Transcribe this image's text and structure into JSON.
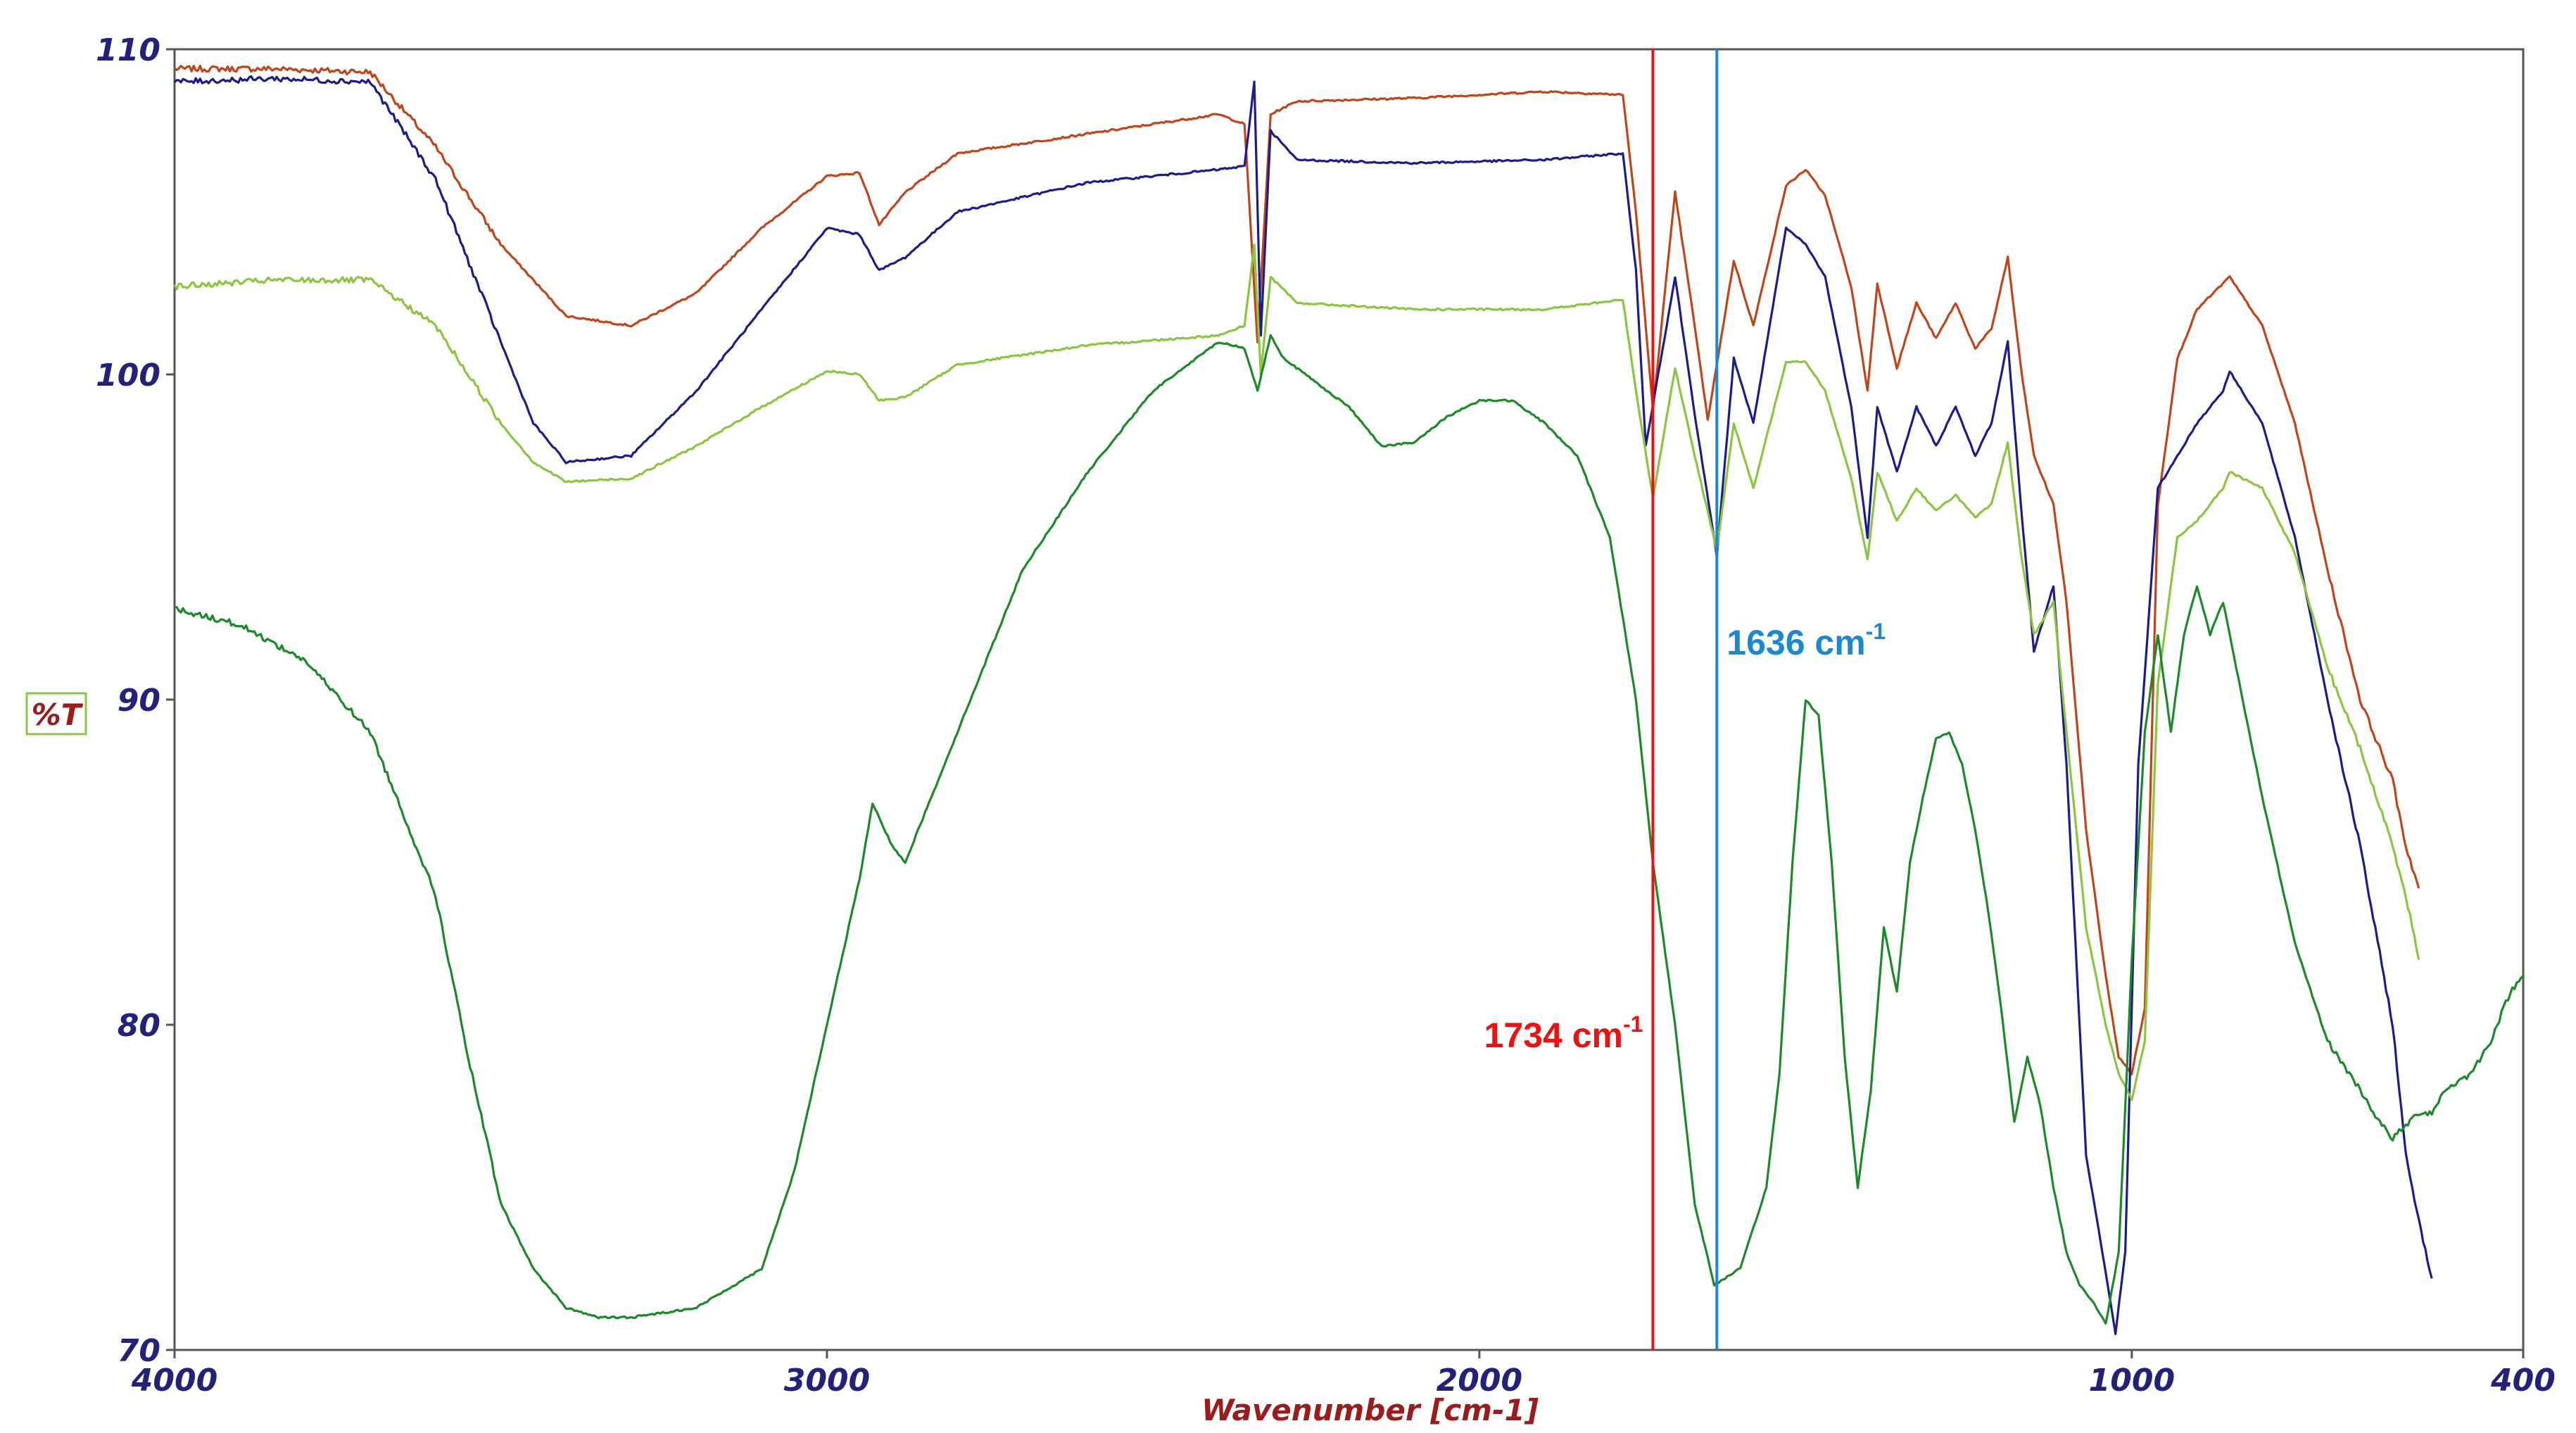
{
  "chart_data": {
    "type": "line",
    "xlabel": "Wavenumber [cm-1]",
    "ylabel": "%T",
    "xlim": [
      4000,
      400
    ],
    "ylim": [
      70,
      110
    ],
    "x_reversed": true,
    "grid": false,
    "legend": "none",
    "x_ticks": [
      4000,
      3000,
      2000,
      1000,
      400
    ],
    "x_tick_labels": [
      "4000",
      "3000",
      "2000",
      "1000",
      "400"
    ],
    "y_ticks": [
      110,
      100,
      90,
      80,
      70
    ],
    "y_tick_labels": [
      "110",
      "100",
      "90",
      "80",
      "70"
    ],
    "colors": {
      "axis_text": "#22227a",
      "axis_title": "#9a1c1c",
      "ylabel_border": "#8cc63f",
      "frame": "#555555"
    },
    "series": [
      {
        "color": "#c0461a",
        "points": [
          [
            4000,
            109.4
          ],
          [
            3850,
            109.4
          ],
          [
            3700,
            109.3
          ],
          [
            3600,
            107.0
          ],
          [
            3500,
            104.0
          ],
          [
            3400,
            101.8
          ],
          [
            3300,
            101.5
          ],
          [
            3200,
            102.5
          ],
          [
            3100,
            104.5
          ],
          [
            3000,
            106.1
          ],
          [
            2950,
            106.2
          ],
          [
            2920,
            104.6
          ],
          [
            2880,
            105.6
          ],
          [
            2800,
            106.8
          ],
          [
            2600,
            107.4
          ],
          [
            2400,
            108.0
          ],
          [
            2360,
            107.7
          ],
          [
            2340,
            101.0
          ],
          [
            2320,
            108.0
          ],
          [
            2280,
            108.4
          ],
          [
            2100,
            108.5
          ],
          [
            1900,
            108.7
          ],
          [
            1780,
            108.6
          ],
          [
            1760,
            105.0
          ],
          [
            1734,
            98.9
          ],
          [
            1700,
            105.6
          ],
          [
            1670,
            101.5
          ],
          [
            1650,
            98.6
          ],
          [
            1610,
            103.5
          ],
          [
            1580,
            101.5
          ],
          [
            1530,
            105.8
          ],
          [
            1500,
            106.3
          ],
          [
            1470,
            105.5
          ],
          [
            1430,
            102.7
          ],
          [
            1405,
            99.5
          ],
          [
            1390,
            102.8
          ],
          [
            1360,
            100.2
          ],
          [
            1330,
            102.2
          ],
          [
            1300,
            101.1
          ],
          [
            1270,
            102.2
          ],
          [
            1240,
            100.8
          ],
          [
            1215,
            101.4
          ],
          [
            1190,
            103.6
          ],
          [
            1170,
            100.2
          ],
          [
            1150,
            97.5
          ],
          [
            1120,
            96.0
          ],
          [
            1100,
            93.0
          ],
          [
            1070,
            86.0
          ],
          [
            1040,
            81.5
          ],
          [
            1020,
            79.0
          ],
          [
            1000,
            78.5
          ],
          [
            980,
            80.5
          ],
          [
            960,
            96.0
          ],
          [
            930,
            100.5
          ],
          [
            900,
            102.0
          ],
          [
            850,
            103.0
          ],
          [
            800,
            101.5
          ],
          [
            750,
            98.5
          ],
          [
            700,
            94.0
          ],
          [
            650,
            90.0
          ],
          [
            600,
            87.5
          ],
          [
            580,
            85.5
          ],
          [
            560,
            84.2
          ]
        ]
      },
      {
        "color": "#1c1c8c",
        "points": [
          [
            4000,
            109.0
          ],
          [
            3850,
            109.1
          ],
          [
            3700,
            109.0
          ],
          [
            3600,
            106.0
          ],
          [
            3500,
            101.0
          ],
          [
            3450,
            98.5
          ],
          [
            3400,
            97.3
          ],
          [
            3300,
            97.5
          ],
          [
            3200,
            99.5
          ],
          [
            3100,
            102.0
          ],
          [
            3000,
            104.5
          ],
          [
            2950,
            104.3
          ],
          [
            2920,
            103.2
          ],
          [
            2880,
            103.6
          ],
          [
            2800,
            105.0
          ],
          [
            2600,
            105.9
          ],
          [
            2400,
            106.3
          ],
          [
            2360,
            106.4
          ],
          [
            2345,
            109.0
          ],
          [
            2335,
            101.2
          ],
          [
            2320,
            107.5
          ],
          [
            2280,
            106.6
          ],
          [
            2100,
            106.5
          ],
          [
            1900,
            106.6
          ],
          [
            1780,
            106.8
          ],
          [
            1760,
            103.2
          ],
          [
            1745,
            97.8
          ],
          [
            1700,
            103.0
          ],
          [
            1670,
            98.8
          ],
          [
            1636,
            94.4
          ],
          [
            1610,
            100.5
          ],
          [
            1580,
            98.5
          ],
          [
            1530,
            104.5
          ],
          [
            1500,
            104.0
          ],
          [
            1470,
            103.0
          ],
          [
            1430,
            99.0
          ],
          [
            1405,
            95.0
          ],
          [
            1390,
            99.0
          ],
          [
            1360,
            97.0
          ],
          [
            1330,
            99.0
          ],
          [
            1300,
            97.8
          ],
          [
            1270,
            99.0
          ],
          [
            1240,
            97.5
          ],
          [
            1215,
            98.5
          ],
          [
            1190,
            101.0
          ],
          [
            1170,
            96.0
          ],
          [
            1150,
            91.5
          ],
          [
            1120,
            93.5
          ],
          [
            1100,
            88.0
          ],
          [
            1070,
            76.0
          ],
          [
            1045,
            73.0
          ],
          [
            1025,
            70.5
          ],
          [
            1010,
            73.0
          ],
          [
            990,
            88.0
          ],
          [
            960,
            96.5
          ],
          [
            930,
            97.5
          ],
          [
            900,
            98.5
          ],
          [
            860,
            99.5
          ],
          [
            850,
            100.1
          ],
          [
            800,
            98.5
          ],
          [
            750,
            95.0
          ],
          [
            700,
            90.0
          ],
          [
            650,
            85.5
          ],
          [
            600,
            80.0
          ],
          [
            580,
            76.0
          ],
          [
            560,
            74.0
          ],
          [
            540,
            72.2
          ]
        ]
      },
      {
        "color": "#8cc63f",
        "points": [
          [
            4000,
            102.7
          ],
          [
            3850,
            102.9
          ],
          [
            3700,
            102.9
          ],
          [
            3600,
            101.5
          ],
          [
            3500,
            98.5
          ],
          [
            3450,
            97.3
          ],
          [
            3400,
            96.7
          ],
          [
            3300,
            96.8
          ],
          [
            3200,
            97.8
          ],
          [
            3100,
            99.0
          ],
          [
            3000,
            100.1
          ],
          [
            2950,
            100.0
          ],
          [
            2920,
            99.2
          ],
          [
            2880,
            99.3
          ],
          [
            2800,
            100.3
          ],
          [
            2600,
            100.9
          ],
          [
            2400,
            101.2
          ],
          [
            2360,
            101.5
          ],
          [
            2345,
            104.0
          ],
          [
            2335,
            100.0
          ],
          [
            2320,
            103.0
          ],
          [
            2280,
            102.2
          ],
          [
            2100,
            102.0
          ],
          [
            1900,
            102.0
          ],
          [
            1780,
            102.3
          ],
          [
            1760,
            99.5
          ],
          [
            1734,
            96.2
          ],
          [
            1700,
            100.2
          ],
          [
            1670,
            97.5
          ],
          [
            1636,
            94.6
          ],
          [
            1610,
            98.5
          ],
          [
            1580,
            96.5
          ],
          [
            1530,
            100.4
          ],
          [
            1500,
            100.4
          ],
          [
            1470,
            99.5
          ],
          [
            1430,
            96.8
          ],
          [
            1405,
            94.3
          ],
          [
            1390,
            97.0
          ],
          [
            1360,
            95.5
          ],
          [
            1330,
            96.5
          ],
          [
            1300,
            95.8
          ],
          [
            1270,
            96.3
          ],
          [
            1240,
            95.6
          ],
          [
            1215,
            96.0
          ],
          [
            1190,
            97.9
          ],
          [
            1170,
            94.5
          ],
          [
            1150,
            92.0
          ],
          [
            1120,
            93.0
          ],
          [
            1100,
            89.0
          ],
          [
            1070,
            83.0
          ],
          [
            1040,
            80.0
          ],
          [
            1020,
            78.5
          ],
          [
            1000,
            77.7
          ],
          [
            980,
            79.5
          ],
          [
            960,
            90.5
          ],
          [
            930,
            95.0
          ],
          [
            900,
            95.5
          ],
          [
            860,
            96.5
          ],
          [
            850,
            97.0
          ],
          [
            800,
            96.5
          ],
          [
            750,
            94.5
          ],
          [
            700,
            91.0
          ],
          [
            650,
            88.5
          ],
          [
            600,
            85.5
          ],
          [
            580,
            84.0
          ],
          [
            560,
            82.0
          ]
        ]
      },
      {
        "color": "#1c8a28",
        "points": [
          [
            4000,
            92.8
          ],
          [
            3900,
            92.3
          ],
          [
            3800,
            91.2
          ],
          [
            3700,
            89.0
          ],
          [
            3600,
            84.0
          ],
          [
            3550,
            79.0
          ],
          [
            3500,
            74.5
          ],
          [
            3450,
            72.5
          ],
          [
            3400,
            71.3
          ],
          [
            3350,
            71.0
          ],
          [
            3300,
            71.0
          ],
          [
            3200,
            71.3
          ],
          [
            3100,
            72.5
          ],
          [
            3050,
            75.5
          ],
          [
            3000,
            80.0
          ],
          [
            2950,
            84.5
          ],
          [
            2930,
            86.8
          ],
          [
            2900,
            85.5
          ],
          [
            2880,
            85.0
          ],
          [
            2850,
            86.5
          ],
          [
            2800,
            89.0
          ],
          [
            2700,
            94.0
          ],
          [
            2600,
            97.0
          ],
          [
            2500,
            99.5
          ],
          [
            2400,
            101.0
          ],
          [
            2360,
            100.8
          ],
          [
            2340,
            99.5
          ],
          [
            2320,
            101.2
          ],
          [
            2300,
            100.5
          ],
          [
            2200,
            99.0
          ],
          [
            2150,
            97.8
          ],
          [
            2100,
            97.9
          ],
          [
            2050,
            98.7
          ],
          [
            2000,
            99.2
          ],
          [
            1950,
            99.2
          ],
          [
            1900,
            98.5
          ],
          [
            1850,
            97.5
          ],
          [
            1800,
            95.0
          ],
          [
            1760,
            90.0
          ],
          [
            1734,
            85.0
          ],
          [
            1700,
            80.0
          ],
          [
            1670,
            74.5
          ],
          [
            1640,
            72.0
          ],
          [
            1600,
            72.5
          ],
          [
            1560,
            75.0
          ],
          [
            1540,
            78.5
          ],
          [
            1520,
            85.0
          ],
          [
            1500,
            90.0
          ],
          [
            1480,
            89.5
          ],
          [
            1460,
            85.0
          ],
          [
            1440,
            79.0
          ],
          [
            1420,
            75.0
          ],
          [
            1400,
            78.0
          ],
          [
            1380,
            83.0
          ],
          [
            1360,
            81.0
          ],
          [
            1340,
            85.0
          ],
          [
            1320,
            87.0
          ],
          [
            1300,
            88.8
          ],
          [
            1280,
            89.0
          ],
          [
            1260,
            88.0
          ],
          [
            1240,
            86.0
          ],
          [
            1220,
            83.5
          ],
          [
            1200,
            80.5
          ],
          [
            1180,
            77.0
          ],
          [
            1160,
            79.0
          ],
          [
            1140,
            77.5
          ],
          [
            1120,
            75.0
          ],
          [
            1100,
            73.0
          ],
          [
            1080,
            72.0
          ],
          [
            1060,
            71.5
          ],
          [
            1040,
            70.8
          ],
          [
            1020,
            73.0
          ],
          [
            1000,
            82.0
          ],
          [
            980,
            89.0
          ],
          [
            960,
            92.0
          ],
          [
            940,
            89.0
          ],
          [
            920,
            92.0
          ],
          [
            900,
            93.5
          ],
          [
            880,
            92.0
          ],
          [
            860,
            93.0
          ],
          [
            840,
            91.0
          ],
          [
            800,
            87.0
          ],
          [
            750,
            82.5
          ],
          [
            700,
            79.5
          ],
          [
            650,
            78.0
          ],
          [
            620,
            77.0
          ],
          [
            600,
            76.5
          ],
          [
            560,
            77.3
          ],
          [
            540,
            77.3
          ],
          [
            520,
            78.0
          ],
          [
            480,
            78.5
          ],
          [
            450,
            79.5
          ],
          [
            420,
            81.0
          ],
          [
            400,
            81.5
          ]
        ]
      }
    ],
    "annotations": [
      {
        "x": 1734,
        "color": "#ee1111",
        "label": "1734 cm",
        "sup": "-1"
      },
      {
        "x": 1636,
        "color": "#1a8ad0",
        "label": "1636 cm",
        "sup": "-1"
      }
    ]
  }
}
